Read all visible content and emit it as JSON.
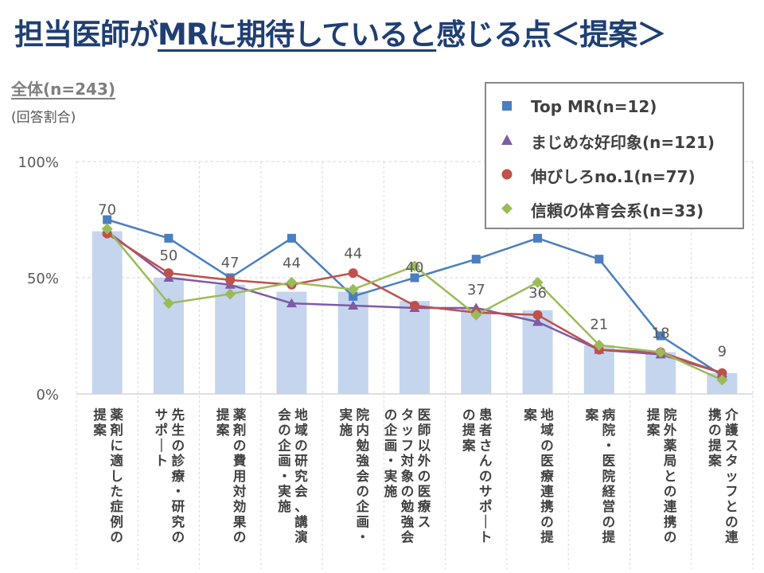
{
  "title": {
    "part1": "担当医師が",
    "part2": "MRに期待していると",
    "part3": "感じる点＜提案＞"
  },
  "subtitle": "全体(n=243)",
  "note": "(回答割合)",
  "colors": {
    "bar": "#c5d5ee",
    "top_mr": "#4a7ebf",
    "majime": "#7d5ba6",
    "nobishiro": "#c0504d",
    "shinrai": "#9bbb59",
    "label_text": "#595959",
    "grid": "#d9d9d9"
  },
  "legend": [
    {
      "label": "Top MR(n=12)",
      "marker": "square",
      "color": "#4a7ebf"
    },
    {
      "label": "まじめな好印象(n=121)",
      "marker": "triangle",
      "color": "#7d5ba6"
    },
    {
      "label": "伸びしろno.1(n=77)",
      "marker": "circle",
      "color": "#c0504d"
    },
    {
      "label": "信頼の体育会系(n=33)",
      "marker": "diamond",
      "color": "#9bbb59"
    }
  ],
  "chart_data": {
    "type": "bar",
    "ylim": [
      0,
      100
    ],
    "yticks": [
      "0%",
      "50%",
      "100%"
    ],
    "categories": [
      [
        "薬剤に適した症例の",
        "提案"
      ],
      [
        "先生の診療・研究の",
        "サポート"
      ],
      [
        "薬剤の費用対効果の",
        "提案"
      ],
      [
        "地域の研究会、講演",
        "会の企画・実施"
      ],
      [
        "院内勉強会の企画・",
        "実施"
      ],
      [
        "医師以外の医療ス",
        "タッフ対象の勉強会",
        "の企画・実施"
      ],
      [
        "患者さんのサポート",
        "の提案"
      ],
      [
        "地域の医療連携の提",
        "案"
      ],
      [
        "病院・医院経営の提",
        "案"
      ],
      [
        "院外薬局との連携の",
        "提案"
      ],
      [
        "介護スタッフとの連",
        "携の提案"
      ]
    ],
    "bars": {
      "name": "全体(n=243)",
      "values": [
        70,
        50,
        47,
        44,
        44,
        40,
        37,
        36,
        21,
        18,
        9
      ]
    },
    "series": [
      {
        "name": "Top MR(n=12)",
        "marker": "square",
        "values": [
          75,
          67,
          50,
          67,
          42,
          50,
          58,
          67,
          58,
          25,
          8
        ]
      },
      {
        "name": "まじめな好印象(n=121)",
        "marker": "triangle",
        "values": [
          70,
          50,
          47,
          39,
          38,
          37,
          37,
          31,
          19,
          17,
          9
        ]
      },
      {
        "name": "伸びしろno.1(n=77)",
        "marker": "circle",
        "values": [
          69,
          52,
          49,
          47,
          52,
          38,
          35,
          34,
          19,
          18,
          9
        ]
      },
      {
        "name": "信頼の体育会系(n=33)",
        "marker": "diamond",
        "values": [
          71,
          39,
          43,
          48,
          45,
          55,
          34,
          48,
          21,
          18,
          6
        ]
      }
    ]
  }
}
